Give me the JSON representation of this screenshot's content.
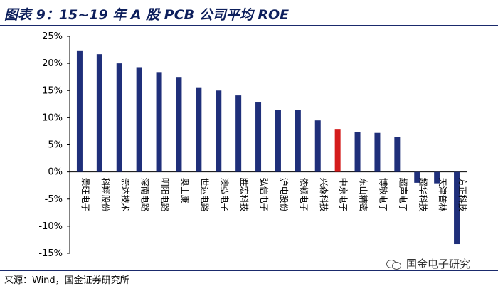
{
  "header": {
    "title": "图表 9：15~19 年 A 股 PCB 公司平均 ROE"
  },
  "footer": {
    "source": "来源：Wind，国金证券研究所"
  },
  "watermark": {
    "text": "国金电子研究",
    "icon": "wechat-icon"
  },
  "colors": {
    "bar": "#1f2f7a",
    "highlight": "#d41c1c",
    "axis": "#000000",
    "title": "#0d1f5c"
  },
  "chart_data": {
    "type": "bar",
    "title": "15~19 年 A 股 PCB 公司平均 ROE",
    "xlabel": "",
    "ylabel": "",
    "ylim": [
      -0.15,
      0.25
    ],
    "y_ticks": [
      0.25,
      0.2,
      0.15,
      0.1,
      0.05,
      0.0,
      -0.05,
      -0.1,
      -0.15
    ],
    "y_tick_labels": [
      "25%",
      "20%",
      "15%",
      "10%",
      "5%",
      "0%",
      "-5%",
      "-10%",
      "-15%"
    ],
    "categories": [
      "景旺电子",
      "科翔股份",
      "崇达技术",
      "深南电路",
      "明阳电路",
      "奥士康",
      "世运电路",
      "澳弘电子",
      "胜宏科技",
      "弘信电子",
      "沪电股份",
      "依顿电子",
      "兴森科技",
      "中京电子",
      "东山精密",
      "博敏电子",
      "超声电子",
      "超华科技",
      "天津普林",
      "方正科技"
    ],
    "values": [
      0.224,
      0.217,
      0.2,
      0.193,
      0.184,
      0.175,
      0.156,
      0.15,
      0.141,
      0.128,
      0.114,
      0.114,
      0.095,
      0.078,
      0.073,
      0.072,
      0.064,
      -0.02,
      -0.021,
      -0.133
    ],
    "highlight_index": 13
  }
}
